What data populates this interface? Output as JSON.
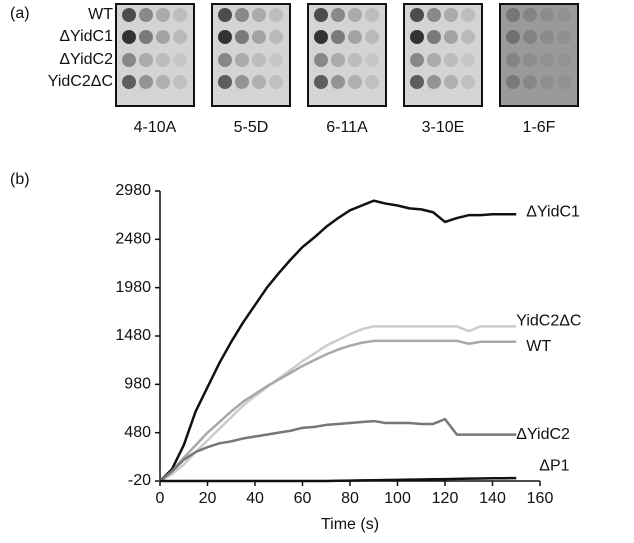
{
  "panel_a": {
    "label": "(a)",
    "rows": [
      "WT",
      "ΔYidC1",
      "ΔYidC2",
      "YidC2ΔC"
    ],
    "plates": [
      "4-10A",
      "5-5D",
      "6-11A",
      "3-10E",
      "1-6F"
    ]
  },
  "chart_data": {
    "type": "line",
    "panel_label": "(b)",
    "x_label": "Time (s)",
    "x": [
      0,
      5,
      10,
      15,
      20,
      25,
      30,
      35,
      40,
      45,
      50,
      55,
      60,
      65,
      70,
      75,
      80,
      85,
      90,
      95,
      100,
      105,
      110,
      115,
      120,
      125,
      130,
      135,
      140,
      145,
      150
    ],
    "xlim": [
      0,
      160
    ],
    "xticks": [
      0,
      20,
      40,
      60,
      80,
      100,
      120,
      140,
      160
    ],
    "ylim": [
      -20,
      2980
    ],
    "yticks": [
      -20,
      480,
      980,
      1480,
      1980,
      2480,
      2980
    ],
    "series": [
      {
        "name": "ΔYidC1",
        "color": "#111111",
        "values": [
          -20,
          100,
          350,
          700,
          950,
          1200,
          1420,
          1620,
          1800,
          1980,
          2130,
          2270,
          2400,
          2500,
          2610,
          2700,
          2780,
          2830,
          2880,
          2850,
          2830,
          2800,
          2790,
          2760,
          2660,
          2700,
          2730,
          2730,
          2740,
          2740,
          2740
        ]
      },
      {
        "name": "YidC2ΔC",
        "color": "#cccccc",
        "values": [
          -20,
          50,
          150,
          280,
          400,
          520,
          640,
          760,
          860,
          950,
          1040,
          1130,
          1220,
          1300,
          1380,
          1440,
          1500,
          1550,
          1580,
          1580,
          1580,
          1580,
          1580,
          1580,
          1580,
          1580,
          1530,
          1580,
          1580,
          1580,
          1580
        ]
      },
      {
        "name": "WT",
        "color": "#a8a8a8",
        "values": [
          -20,
          80,
          220,
          350,
          480,
          590,
          700,
          800,
          880,
          960,
          1030,
          1100,
          1170,
          1230,
          1290,
          1340,
          1380,
          1410,
          1430,
          1430,
          1430,
          1430,
          1430,
          1430,
          1430,
          1430,
          1400,
          1420,
          1420,
          1420,
          1420
        ]
      },
      {
        "name": "ΔYidC2",
        "color": "#777777",
        "values": [
          -20,
          80,
          200,
          280,
          330,
          370,
          390,
          420,
          440,
          460,
          480,
          500,
          530,
          540,
          560,
          570,
          580,
          590,
          600,
          580,
          580,
          580,
          570,
          570,
          620,
          460,
          460,
          460,
          460,
          460,
          460
        ]
      },
      {
        "name": "ΔP1",
        "color": "#111111",
        "values": [
          -20,
          -20,
          -20,
          -20,
          -20,
          -20,
          -20,
          -20,
          -20,
          -20,
          -20,
          -20,
          -20,
          -20,
          -20,
          -18,
          -16,
          -14,
          -12,
          -10,
          -8,
          -6,
          -4,
          -2,
          0,
          2,
          4,
          6,
          8,
          9,
          10
        ]
      }
    ]
  }
}
